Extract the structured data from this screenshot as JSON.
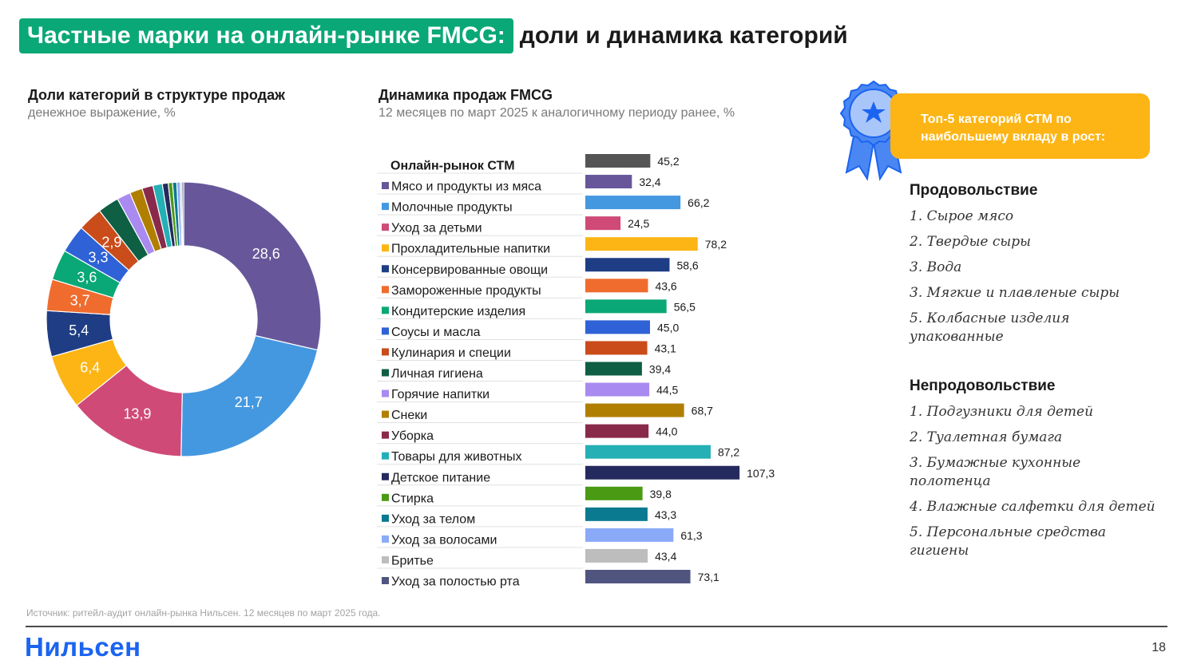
{
  "title": {
    "highlight": "Частные марки на онлайн-рынке FMCG:",
    "rest": "доли и динамика категорий"
  },
  "left_section": {
    "title": "Доли категорий в структуре продаж",
    "subtitle": "денежное выражение, %"
  },
  "mid_section": {
    "title": "Динамика продаж FMCG",
    "subtitle": "12 месяцев по март 2025 к аналогичному периоду ранее, %"
  },
  "top5": {
    "label": "Топ-5 категорий СТМ по наибольшему вкладу в рост:"
  },
  "food": {
    "title": "Продовольствие",
    "items": [
      "1. Сырое мясо",
      "2. Твердые сыры",
      "3. Вода",
      "3. Мягкие и плавленые сыры",
      "5. Колбасные изделия упакованные"
    ]
  },
  "nonfood": {
    "title": "Непродовольствие",
    "items": [
      "1. Подгузники для детей",
      "2. Туалетная бумага",
      "3. Бумажные кухонные полотенца",
      "4. Влажные салфетки для детей",
      "5. Персональные средства гигиены"
    ]
  },
  "source": "Источник: ритейл-аудит онлайн-рынка Нильсен. 12 месяцев по март 2025 года.",
  "logo": "Нильсен",
  "page_number": "18",
  "chart_data": [
    {
      "type": "pie",
      "donut": true,
      "title": "Доли категорий в структуре продаж",
      "subtitle": "денежное выражение, %",
      "categories": [
        "Мясо и продукты из мяса",
        "Молочные продукты",
        "Уход за детьми",
        "Прохладительные напитки",
        "Консервированные овощи",
        "Замороженные продукты",
        "Кондитерские изделия",
        "Соусы и масла",
        "Кулинария и специи",
        "Личная гигиена",
        "Горячие напитки",
        "Снеки",
        "Уборка",
        "Товары для животных",
        "Детское питание",
        "Стирка",
        "Уход за телом",
        "Уход за волосами",
        "Бритье",
        "Уход за полостью рта"
      ],
      "values": [
        28.6,
        21.7,
        13.9,
        6.4,
        5.4,
        3.7,
        3.6,
        3.3,
        2.9,
        2.5,
        1.6,
        1.5,
        1.3,
        1.1,
        0.7,
        0.5,
        0.5,
        0.4,
        0.2,
        0.2
      ],
      "labels": [
        "28,6",
        "21,7",
        "13,9",
        "6,4",
        "5,4",
        "3,7",
        "3,6",
        "3,3",
        "2,9",
        "",
        "",
        "",
        "",
        "",
        "",
        "",
        "",
        "",
        "",
        ""
      ],
      "colors": [
        "#67579a",
        "#4498e0",
        "#cf4a77",
        "#fdb515",
        "#1e3d84",
        "#ef6c2e",
        "#0aa876",
        "#2f62d6",
        "#c94c1a",
        "#0f5f44",
        "#a98af0",
        "#b07f00",
        "#8a2a4a",
        "#24b0b5",
        "#252a5e",
        "#4a9a13",
        "#0a7a90",
        "#8aaaf7",
        "#bdbdbd",
        "#505580"
      ]
    },
    {
      "type": "bar",
      "orientation": "horizontal",
      "title": "Динамика продаж FMCG",
      "subtitle": "12 месяцев по март 2025 к аналогичному периоду ранее, %",
      "categories": [
        "Онлайн-рынок СТМ",
        "Мясо и продукты из мяса",
        "Молочные продукты",
        "Уход за детьми",
        "Прохладительные напитки",
        "Консервированные овощи",
        "Замороженные продукты",
        "Кондитерские изделия",
        "Соусы и масла",
        "Кулинария и специи",
        "Личная гигиена",
        "Горячие напитки",
        "Снеки",
        "Уборка",
        "Товары для животных",
        "Детское питание",
        "Стирка",
        "Уход за телом",
        "Уход за волосами",
        "Бритье",
        "Уход за полостью рта"
      ],
      "values": [
        45.2,
        32.4,
        66.2,
        24.5,
        78.2,
        58.6,
        43.6,
        56.5,
        45.0,
        43.1,
        39.4,
        44.5,
        68.7,
        44.0,
        87.2,
        107.3,
        39.8,
        43.3,
        61.3,
        43.4,
        73.1
      ],
      "labels": [
        "45,2",
        "32,4",
        "66,2",
        "24,5",
        "78,2",
        "58,6",
        "43,6",
        "56,5",
        "45,0",
        "43,1",
        "39,4",
        "44,5",
        "68,7",
        "44,0",
        "87,2",
        "107,3",
        "39,8",
        "43,3",
        "61,3",
        "43,4",
        "73,1"
      ],
      "colors": [
        "#555555",
        "#67579a",
        "#4498e0",
        "#cf4a77",
        "#fdb515",
        "#1e3d84",
        "#ef6c2e",
        "#0aa876",
        "#2f62d6",
        "#c94c1a",
        "#0f5f44",
        "#a98af0",
        "#b07f00",
        "#8a2a4a",
        "#24b0b5",
        "#252a5e",
        "#4a9a13",
        "#0a7a90",
        "#8aaaf7",
        "#bdbdbd",
        "#505580"
      ]
    }
  ]
}
